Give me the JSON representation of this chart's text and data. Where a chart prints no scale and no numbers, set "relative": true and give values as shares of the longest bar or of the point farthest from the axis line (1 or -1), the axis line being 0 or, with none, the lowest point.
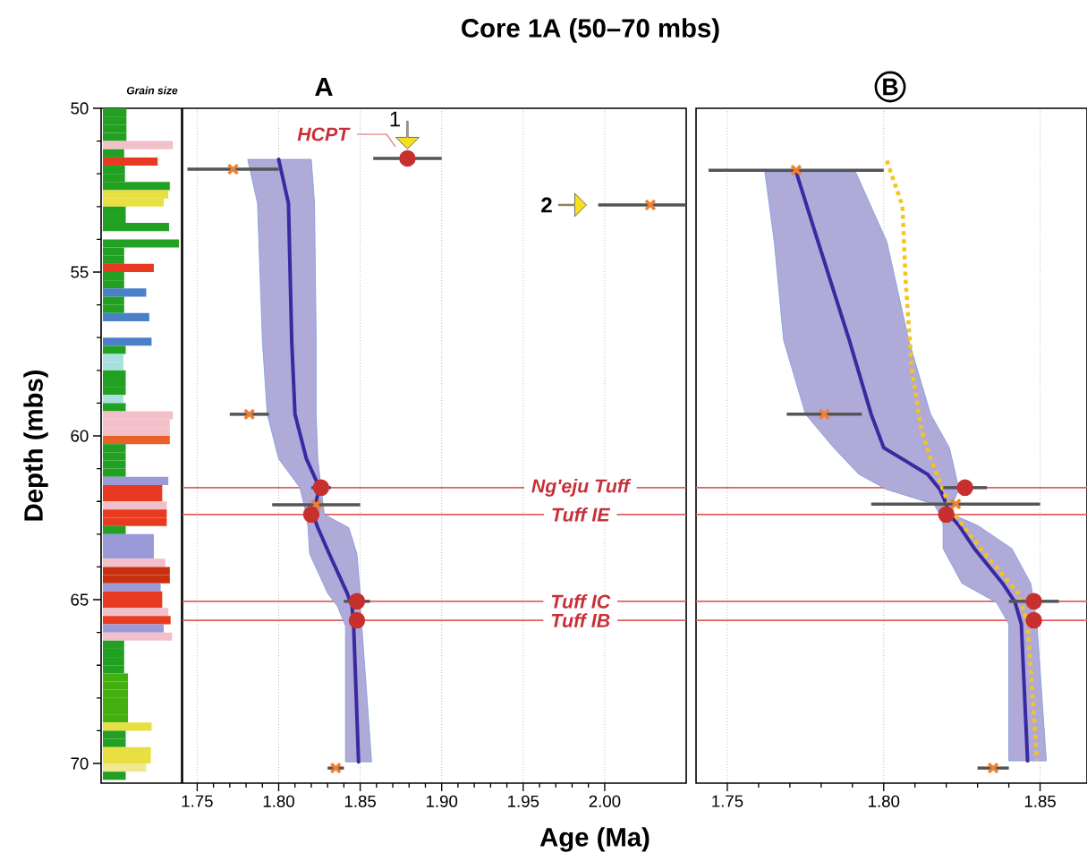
{
  "chart_data": [
    {
      "type": "bar",
      "orientation": "horizontal",
      "relative": true,
      "xlabel": "Grain size",
      "ylabel": "Depth (mbs)",
      "ylim": [
        70.6,
        50
      ],
      "yticks": [
        50,
        55,
        60,
        65,
        70
      ],
      "tick_labels": "y",
      "x": [
        50.125,
        50.375,
        50.625,
        50.875,
        51.125,
        51.375,
        51.625,
        51.875,
        52.125,
        52.375,
        52.625,
        52.875,
        53.125,
        53.375,
        53.625,
        53.875,
        54.125,
        54.375,
        54.625,
        54.875,
        55.125,
        55.375,
        55.625,
        55.875,
        56.125,
        56.375,
        56.625,
        56.875,
        57.125,
        57.375,
        57.625,
        57.875,
        58.125,
        58.375,
        58.625,
        58.875,
        59.125,
        59.375,
        59.625,
        59.875,
        60.125,
        60.375,
        60.625,
        60.875,
        61.125,
        61.375,
        61.625,
        61.875,
        62.125,
        62.375,
        62.625,
        62.875,
        63.125,
        63.375,
        63.625,
        63.875,
        64.125,
        64.375,
        64.625,
        64.875,
        65.125,
        65.375,
        65.625,
        65.875,
        66.125,
        66.375,
        66.625,
        66.875,
        67.125,
        67.375,
        67.625,
        67.875,
        68.125,
        68.375,
        68.625,
        68.875,
        69.125,
        69.375,
        69.625,
        69.875,
        70.125,
        70.375
      ],
      "values": [
        0.31,
        0.31,
        0.31,
        0.31,
        0.92,
        0.28,
        0.72,
        0.29,
        0.29,
        0.88,
        0.86,
        0.8,
        0.3,
        0.3,
        0.87,
        null,
        1,
        0.28,
        0.28,
        0.67,
        0.28,
        0.28,
        0.57,
        0.28,
        0.28,
        0.61,
        null,
        null,
        0.64,
        0.3,
        0.27,
        0.27,
        0.3,
        0.3,
        0.3,
        0.27,
        0.3,
        0.92,
        0.88,
        0.88,
        0.88,
        0.3,
        0.3,
        0.3,
        0.3,
        0.86,
        0.78,
        0.78,
        0.84,
        0.84,
        0.84,
        0.3,
        0.67,
        0.67,
        0.67,
        0.82,
        0.88,
        0.88,
        0.76,
        0.78,
        0.78,
        0.86,
        0.89,
        0.8,
        0.91,
        0.28,
        0.28,
        0.28,
        0.28,
        0.33,
        0.33,
        0.33,
        0.33,
        0.33,
        0.33,
        0.64,
        0.3,
        0.3,
        0.63,
        0.63,
        0.57,
        0.3
      ],
      "colors": [
        "#22a022",
        "#22a022",
        "#22a022",
        "#22a022",
        "#f2c0c8",
        "#22a022",
        "#e83a20",
        "#22a022",
        "#22a022",
        "#22a022",
        "#e8e040",
        "#e8e040",
        "#22a022",
        "#22a022",
        "#22a022",
        null,
        "#22a022",
        "#22a022",
        "#22a022",
        "#e83a20",
        "#22a022",
        "#22a022",
        "#4a80c8",
        "#22a022",
        "#22a022",
        "#4a80c8",
        null,
        null,
        "#4a80c8",
        "#22a022",
        "#a8e0e0",
        "#a8e0e0",
        "#22a022",
        "#22a022",
        "#22a022",
        "#a8e0e0",
        "#22a022",
        "#f2c0c8",
        "#f2c0c8",
        "#f2c0c8",
        "#e8602a",
        "#22a022",
        "#22a022",
        "#22a022",
        "#22a022",
        "#9a9ad8",
        "#e83a20",
        "#e83a20",
        "#f2c0c8",
        "#e83a20",
        "#e83a20",
        "#22a022",
        "#9a9ad8",
        "#9a9ad8",
        "#9a9ad8",
        "#f2c0c8",
        "#c83010",
        "#c83010",
        "#9a9ad8",
        "#e83a20",
        "#e83a20",
        "#f2c0c8",
        "#e83a20",
        "#9a9ad8",
        "#f2c0c8",
        "#22a022",
        "#22a022",
        "#22a022",
        "#22a022",
        "#44b010",
        "#44b010",
        "#44b010",
        "#44b010",
        "#44b010",
        "#44b010",
        "#e8e040",
        "#22a022",
        "#22a022",
        "#e8e040",
        "#e8e040",
        "#f0e890",
        "#22a022"
      ]
    },
    {
      "type": "line",
      "orientation": "horizontal",
      "title": "A",
      "xlabel": "Age (Ma)",
      "xlim": [
        1.741,
        2.05
      ],
      "xticks": [
        1.75,
        {
          "value": 1.8,
          "label": "1.80"
        },
        1.85,
        {
          "value": 1.9,
          "label": "1.90"
        },
        1.95,
        {
          "value": 2.0,
          "label": "2.00"
        }
      ],
      "ylim": [
        70.6,
        50
      ],
      "tick_labels": "x",
      "grid": "x",
      "ref_lines": [
        {
          "axis": "y",
          "value": 61.58,
          "label": "Ng'eju Tuff",
          "color": "#e06060"
        },
        {
          "axis": "y",
          "value": 62.4,
          "label": "Tuff IE",
          "color": "#e06060"
        },
        {
          "axis": "y",
          "value": 65.05,
          "label": "Tuff IC",
          "color": "#e06060"
        },
        {
          "axis": "y",
          "value": 65.63,
          "label": "Tuff IB",
          "color": "#e06060"
        }
      ],
      "annotations": [
        "Core 1A (50–70 mbs)",
        "HCPT",
        {
          "text": "1",
          "x": 1.879,
          "y": 51.53
        },
        "2"
      ],
      "series": [
        {
          "type": "line",
          "color": "#3a2aa0",
          "x": [
            51.56,
            52.9,
            57.1,
            59.34,
            60.7,
            61.58,
            62.4,
            62.8,
            63.6,
            64.8,
            65.2,
            65.8,
            69.95
          ],
          "values": [
            1.8,
            1.806,
            1.808,
            1.81,
            1.817,
            1.825,
            1.821,
            1.824,
            1.831,
            1.842,
            1.845,
            1.846,
            1.849
          ],
          "lower": [
            1.781,
            1.787,
            1.79,
            1.793,
            1.8,
            1.813,
            1.817,
            1.818,
            1.819,
            1.83,
            1.836,
            1.841,
            1.841
          ],
          "upper": [
            1.82,
            1.822,
            1.823,
            1.823,
            1.824,
            1.826,
            1.828,
            1.843,
            1.848,
            1.85,
            1.85,
            1.851,
            1.857
          ]
        },
        {
          "type": "scatter",
          "marker": "cross",
          "color": "#f08030",
          "x": [
            51.86,
            52.95,
            59.34,
            62.1,
            70.14
          ],
          "values": [
            1.772,
            2.028,
            1.782,
            1.823,
            1.835
          ],
          "errors": [
            0.028,
            [
              1.996,
              2.05
            ],
            0.012,
            0.027,
            0.005
          ]
        },
        {
          "type": "scatter",
          "marker": "circle",
          "color": "#c83030",
          "x": [
            51.53,
            61.58,
            62.4,
            65.05,
            65.63
          ],
          "values": [
            1.879,
            1.826,
            1.82,
            1.848,
            1.848
          ],
          "errors": [
            0.021,
            0.006,
            null,
            0.008,
            null
          ]
        }
      ]
    },
    {
      "type": "line",
      "orientation": "horizontal",
      "title": "B",
      "xlim": [
        1.74,
        1.865
      ],
      "xticks": [
        1.75,
        {
          "value": 1.8,
          "label": "1.80"
        },
        1.85
      ],
      "ylim": [
        70.6,
        50
      ],
      "tick_labels": "x",
      "grid": "x",
      "ref_lines": [
        {
          "axis": "y",
          "value": 61.58,
          "color": "#e06060"
        },
        {
          "axis": "y",
          "value": 62.4,
          "color": "#e06060"
        },
        {
          "axis": "y",
          "value": 65.05,
          "color": "#e06060"
        },
        {
          "axis": "y",
          "value": 65.63,
          "color": "#e06060"
        }
      ],
      "series": [
        {
          "type": "line",
          "color": "#3a2aa0",
          "x": [
            51.94,
            54.07,
            57.08,
            59.34,
            60.36,
            61.17,
            61.64,
            62.08,
            62.4,
            62.73,
            63.44,
            64.5,
            65.08,
            65.74,
            69.92
          ],
          "values": [
            1.772,
            1.779,
            1.789,
            1.796,
            1.8,
            1.814,
            1.818,
            1.82,
            1.821,
            1.824,
            1.829,
            1.838,
            1.842,
            1.844,
            1.846
          ],
          "lower": [
            1.762,
            1.765,
            1.768,
            1.775,
            1.784,
            1.792,
            1.801,
            1.816,
            1.818,
            1.819,
            1.819,
            1.825,
            1.836,
            1.84,
            1.84
          ],
          "upper": [
            1.791,
            1.801,
            1.808,
            1.815,
            1.821,
            1.823,
            1.824,
            1.822,
            1.822,
            1.83,
            1.841,
            1.847,
            1.848,
            1.849,
            1.852
          ]
        },
        {
          "type": "line",
          "color": "#f5c518",
          "line_style": "dotted",
          "x": [
            51.6,
            52.98,
            55.25,
            57.98,
            59.8,
            60.7,
            61.64,
            62.19,
            63.44,
            64.8,
            65.74,
            69.9
          ],
          "values": [
            1.801,
            1.806,
            1.807,
            1.809,
            1.812,
            1.815,
            1.819,
            1.821,
            1.831,
            1.843,
            1.846,
            1.849
          ]
        },
        {
          "type": "scatter",
          "marker": "cross",
          "color": "#f08030",
          "x": [
            51.89,
            59.34,
            62.08,
            70.14
          ],
          "values": [
            1.772,
            1.781,
            1.823,
            1.835
          ],
          "errors": [
            0.028,
            0.012,
            0.027,
            0.005
          ]
        },
        {
          "type": "scatter",
          "marker": "circle",
          "color": "#c83030",
          "x": [
            61.58,
            62.4,
            65.05,
            65.63
          ],
          "values": [
            1.826,
            1.82,
            1.848,
            1.848
          ],
          "errors": [
            0.007,
            null,
            0.008,
            null
          ]
        }
      ]
    }
  ]
}
